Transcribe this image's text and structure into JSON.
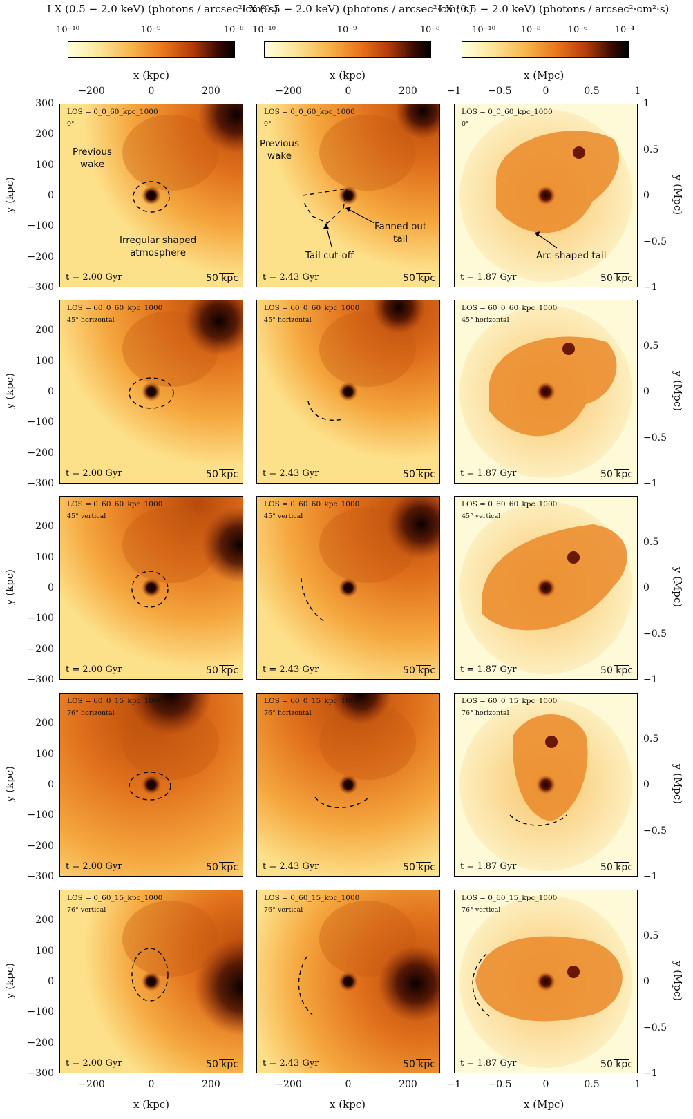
{
  "colorbars": [
    {
      "title": "I X (0.5 − 2.0 keV) (photons / arcsec²·cm²·s)",
      "ticks": [
        "10⁻¹⁰",
        "10⁻⁹",
        "10⁻⁸"
      ]
    },
    {
      "title": "I X (0.5 − 2.0 keV) (photons / arcsec²·cm²·s)",
      "ticks": [
        "10⁻¹⁰",
        "10⁻⁹",
        "10⁻⁸"
      ]
    },
    {
      "title": "I X (0.5 − 2.0 keV) (photons / arcsec²·cm²·s)",
      "ticks": [
        "10⁻¹⁰",
        "10⁻⁸",
        "10⁻⁶",
        "10⁻⁴"
      ]
    }
  ],
  "columns": [
    {
      "xlabel": "x (kpc)",
      "xticks": [
        "−200",
        "0",
        "200"
      ],
      "time": "t = 2.00 Gyr"
    },
    {
      "xlabel": "x (kpc)",
      "xticks": [
        "−200",
        "0",
        "200"
      ],
      "time": "t = 2.43 Gyr"
    },
    {
      "xlabel": "x (Mpc)",
      "xticks": [
        "−1",
        "−0.5",
        "0",
        "0.5",
        "1"
      ],
      "time": "t = 1.87 Gyr"
    }
  ],
  "left_axis": {
    "label": "y (kpc)",
    "ticks": [
      "300",
      "200",
      "100",
      "0",
      "−100",
      "−200",
      "−300"
    ]
  },
  "right_axis": {
    "label": "y (Mpc)",
    "ticks": [
      "1",
      "0.5",
      "0",
      "−0.5",
      "−1"
    ]
  },
  "rows": [
    {
      "los": "LOS = 0_0_60_kpc_1000",
      "angle": "0°"
    },
    {
      "los": "LOS = 60_0_60_kpc_1000",
      "angle": "45° horizontal"
    },
    {
      "los": "LOS = 0_60_60_kpc_1000",
      "angle": "45° vertical"
    },
    {
      "los": "LOS = 60_0_15_kpc_1000",
      "angle": "76° horizontal"
    },
    {
      "los": "LOS = 0_60_15_kpc_1000",
      "angle": "76° vertical"
    }
  ],
  "scale_label": "50 kpc",
  "annotations": {
    "previous_wake_1": "Previous",
    "previous_wake_2": "wake",
    "irregular_1": "Irregular shaped",
    "irregular_2": "atmosphere",
    "fanned_1": "Fanned out",
    "fanned_2": "tail",
    "tail_cutoff": "Tail cut-off",
    "arc_tail": "Arc-shaped tail"
  },
  "colormap": {
    "low": "#ffffe0",
    "mid": "#e8731a",
    "high": "#000000"
  }
}
